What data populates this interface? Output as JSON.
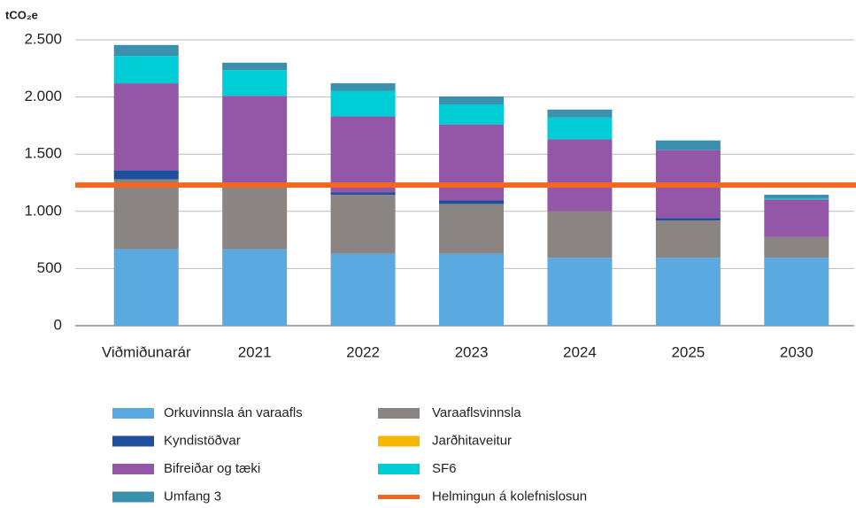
{
  "chart_data": {
    "type": "stacked_bar",
    "y_label": "tCO₂e",
    "categories": [
      "Viðmiðunarár",
      "2021",
      "2022",
      "2023",
      "2024",
      "2025",
      "2030"
    ],
    "series": [
      {
        "name": "Orkuvinnsla án varaafls",
        "color": "#5aaadf",
        "values": [
          670,
          670,
          630,
          630,
          595,
          595,
          595
        ]
      },
      {
        "name": "Varaaflsvinnsla",
        "color": "#8a8583",
        "values": [
          610,
          560,
          515,
          435,
          405,
          325,
          180
        ]
      },
      {
        "name": "Kyndistöðvar",
        "color": "#1f4e9c",
        "values": [
          80,
          0,
          20,
          30,
          0,
          20,
          0
        ]
      },
      {
        "name": "Jarðhitaveitur",
        "color": "#f5b800",
        "values": [
          0,
          0,
          0,
          0,
          0,
          0,
          0
        ]
      },
      {
        "name": "Bifreiðar og tæki",
        "color": "#9457a8",
        "values": [
          760,
          780,
          665,
          665,
          630,
          595,
          330
        ]
      },
      {
        "name": "SF6",
        "color": "#00ccd6",
        "values": [
          240,
          225,
          225,
          175,
          190,
          0,
          10
        ]
      },
      {
        "name": "Umfang 3",
        "color": "#3a90ad",
        "values": [
          95,
          65,
          65,
          70,
          70,
          85,
          30
        ]
      }
    ],
    "reference_line": {
      "name": "Helmingun á kolefnislosun",
      "value": 1230,
      "color": "#f26722"
    },
    "ylim": [
      0,
      2500
    ],
    "yticks": [
      0,
      500,
      {
        "value": 1000,
        "label": "1.000"
      },
      {
        "value": 1500,
        "label": "1.500"
      },
      {
        "value": 2000,
        "label": "2.000"
      },
      {
        "value": 2500,
        "label": "2.500"
      }
    ],
    "grid": true
  }
}
